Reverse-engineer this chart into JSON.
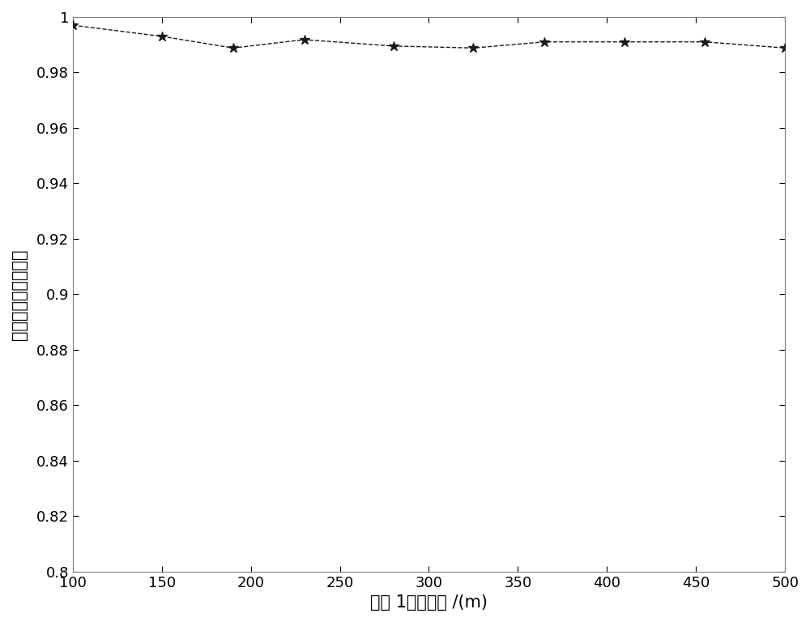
{
  "x_data": [
    100,
    150,
    190,
    230,
    280,
    325,
    365,
    410,
    455,
    500
  ],
  "y_data": [
    0.997,
    0.993,
    0.9888,
    0.9918,
    0.9895,
    0.9888,
    0.991,
    0.991,
    0.991,
    0.9888
  ],
  "line_color": "#1a1a1a",
  "ref_line_color": "#00cc00",
  "ref_line_y": 1.0,
  "xlabel": "雷达 1测距精度 /(m)",
  "ylabel": "虚假航迹正确识别率",
  "xlim": [
    100,
    500
  ],
  "ylim": [
    0.8,
    1.0
  ],
  "xticks": [
    100,
    150,
    200,
    250,
    300,
    350,
    400,
    450,
    500
  ],
  "yticks": [
    0.8,
    0.82,
    0.84,
    0.86,
    0.88,
    0.9,
    0.92,
    0.94,
    0.96,
    0.98,
    1.0
  ],
  "background_color": "#ffffff",
  "spine_color": "#808080",
  "marker_size": 9,
  "line_width": 1.0,
  "line_style": "--",
  "font_size_label": 15,
  "font_size_tick": 13
}
